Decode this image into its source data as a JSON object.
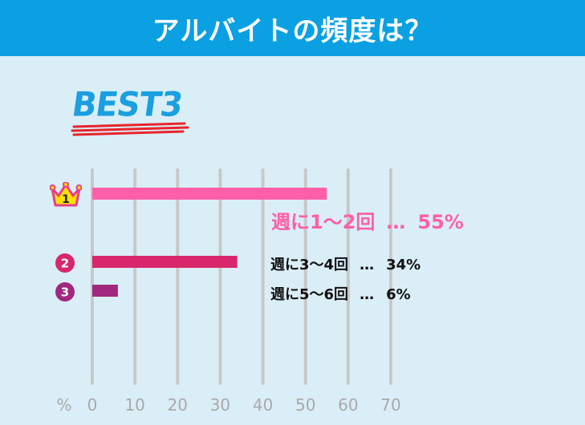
{
  "header": {
    "title": "アルバイトの頻度は？"
  },
  "badge": {
    "text": "BEST3"
  },
  "colors": {
    "header_bg": "#0aa0e2",
    "background": "#daeef7",
    "rank1": "#ff5fa8",
    "rank2": "#d9276b",
    "rank3": "#a0287f",
    "badge_text": "#1a9fe0",
    "badge_underline": "#e8242a",
    "grid": "#c8c8c8",
    "axis_text": "#a9a9a9"
  },
  "chart_data": {
    "type": "bar",
    "orientation": "horizontal",
    "unit_label": "%",
    "xlim": [
      0,
      70
    ],
    "x_ticks": [
      "0",
      "10",
      "20",
      "30",
      "40",
      "50",
      "60",
      "70"
    ],
    "grid": true,
    "series": [
      {
        "rank": "1",
        "category": "週に1〜2回",
        "value": 55,
        "value_label": "55%",
        "color": "#ff5fa8",
        "icon": "crown-icon"
      },
      {
        "rank": "2",
        "category": "週に3〜4回",
        "value": 34,
        "value_label": "34%",
        "color": "#d9276b",
        "icon": "circle-number-icon"
      },
      {
        "rank": "3",
        "category": "週に5〜6回",
        "value": 6,
        "value_label": "6%",
        "color": "#a0287f",
        "icon": "circle-number-icon"
      }
    ],
    "separator": "…"
  }
}
